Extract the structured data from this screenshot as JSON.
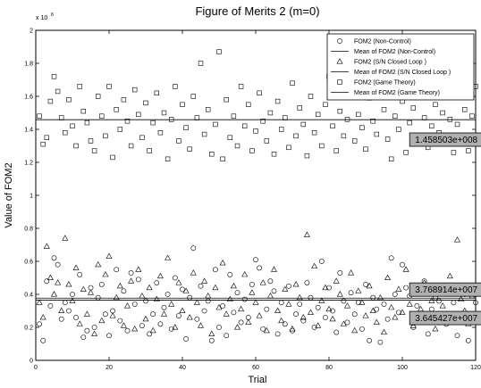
{
  "chart_data": {
    "type": "scatter",
    "title": "Figure of Merits 2 (m=0)",
    "xlabel": "Trial",
    "ylabel": "Value of FOM2",
    "exponent_label": "x 10",
    "exponent_power": "8",
    "xlim": [
      0,
      120
    ],
    "ylim": [
      0,
      2
    ],
    "xticks": [
      "0",
      "20",
      "40",
      "60",
      "80",
      "100",
      "120"
    ],
    "yticks": [
      "0",
      "0.2",
      "0.4",
      "0.6",
      "0.8",
      "1",
      "1.2",
      "1.4",
      "1.6",
      "1.8",
      "2"
    ],
    "grid": false,
    "legend_position": "top-right",
    "legend": [
      "FOM2 (Non-Control)",
      "Mean of FOM2 (Non-Control)",
      "FOM2 (S/N Closed Loop )",
      "Mean of FOM2 (S/N Closed Loop )",
      "FOM2 (Game Theory)",
      "Mean of FOM2 (Game Theory)"
    ],
    "series": [
      {
        "name": "FOM2 (Non-Control)",
        "marker": "circle",
        "mean": 0.3768914,
        "x": [
          1,
          2,
          3,
          4,
          5,
          6,
          7,
          8,
          9,
          10,
          11,
          12,
          13,
          14,
          15,
          16,
          17,
          18,
          19,
          20,
          21,
          22,
          23,
          24,
          25,
          26,
          27,
          28,
          29,
          30,
          31,
          32,
          33,
          34,
          35,
          36,
          37,
          38,
          39,
          40,
          41,
          42,
          43,
          44,
          45,
          46,
          47,
          48,
          49,
          50,
          51,
          52,
          53,
          54,
          55,
          56,
          57,
          58,
          59,
          60,
          61,
          62,
          63,
          64,
          65,
          66,
          67,
          68,
          69,
          70,
          71,
          72,
          73,
          74,
          75,
          76,
          77,
          78,
          79,
          80,
          81,
          82,
          83,
          84,
          85,
          86,
          87,
          88,
          89,
          90,
          91,
          92,
          93,
          94,
          95,
          96,
          97,
          98,
          99,
          100,
          101,
          102,
          103,
          104,
          105,
          106,
          107,
          108,
          109,
          110,
          111,
          112,
          113,
          114,
          115,
          116,
          117,
          118,
          119,
          120
        ],
        "y": [
          0.22,
          0.12,
          0.48,
          0.33,
          0.62,
          0.58,
          0.25,
          0.35,
          0.3,
          0.4,
          0.26,
          0.52,
          0.14,
          0.18,
          0.44,
          0.2,
          0.38,
          0.46,
          0.28,
          0.15,
          0.3,
          0.55,
          0.24,
          0.42,
          0.18,
          0.53,
          0.34,
          0.49,
          0.21,
          0.36,
          0.16,
          0.28,
          0.47,
          0.22,
          0.32,
          0.4,
          0.19,
          0.5,
          0.27,
          0.43,
          0.13,
          0.38,
          0.68,
          0.25,
          0.45,
          0.3,
          0.36,
          0.12,
          0.55,
          0.2,
          0.33,
          0.15,
          0.52,
          0.29,
          0.41,
          0.23,
          0.37,
          0.26,
          0.46,
          0.61,
          0.56,
          0.19,
          0.31,
          0.48,
          0.42,
          0.16,
          0.35,
          0.22,
          0.45,
          0.18,
          0.28,
          0.34,
          0.24,
          0.47,
          0.38,
          0.2,
          0.32,
          0.6,
          0.26,
          0.44,
          0.3,
          0.17,
          0.53,
          0.36,
          0.23,
          0.41,
          0.28,
          0.35,
          0.19,
          0.46,
          0.12,
          0.38,
          0.31,
          0.11,
          0.34,
          0.25,
          0.62,
          0.4,
          0.29,
          0.58,
          0.44,
          0.39,
          0.2,
          0.33,
          0.27,
          0.48,
          0.16,
          0.31,
          0.38,
          0.36,
          0.25,
          0.22,
          0.42,
          0.35,
          0.15,
          0.28,
          0.4,
          0.12,
          0.24,
          0.35
        ]
      },
      {
        "name": "FOM2 (S/N Closed Loop )",
        "marker": "triangle",
        "mean": 0.3645427,
        "x": [
          1,
          2,
          3,
          4,
          5,
          6,
          7,
          8,
          9,
          10,
          11,
          12,
          13,
          14,
          15,
          16,
          17,
          18,
          19,
          20,
          21,
          22,
          23,
          24,
          25,
          26,
          27,
          28,
          29,
          30,
          31,
          32,
          33,
          34,
          35,
          36,
          37,
          38,
          39,
          40,
          41,
          42,
          43,
          44,
          45,
          46,
          47,
          48,
          49,
          50,
          51,
          52,
          53,
          54,
          55,
          56,
          57,
          58,
          59,
          60,
          61,
          62,
          63,
          64,
          65,
          66,
          67,
          68,
          69,
          70,
          71,
          72,
          73,
          74,
          75,
          76,
          77,
          78,
          79,
          80,
          81,
          82,
          83,
          84,
          85,
          86,
          87,
          88,
          89,
          90,
          91,
          92,
          93,
          94,
          95,
          96,
          97,
          98,
          99,
          100,
          101,
          102,
          103,
          104,
          105,
          106,
          107,
          108,
          109,
          110,
          111,
          112,
          113,
          114,
          115,
          116,
          117,
          118,
          119,
          120
        ],
        "y": [
          0.35,
          0.26,
          0.69,
          0.5,
          0.4,
          0.47,
          0.3,
          0.74,
          0.46,
          0.36,
          0.56,
          0.22,
          0.43,
          0.28,
          0.41,
          0.16,
          0.58,
          0.24,
          0.52,
          0.63,
          0.27,
          0.38,
          0.45,
          0.21,
          0.33,
          0.48,
          0.19,
          0.55,
          0.39,
          0.25,
          0.44,
          0.18,
          0.37,
          0.51,
          0.28,
          0.62,
          0.34,
          0.2,
          0.47,
          0.3,
          0.42,
          0.26,
          0.53,
          0.35,
          0.21,
          0.48,
          0.39,
          0.16,
          0.44,
          0.32,
          0.59,
          0.28,
          0.37,
          0.45,
          0.2,
          0.31,
          0.52,
          0.23,
          0.41,
          0.35,
          0.27,
          0.47,
          0.18,
          0.39,
          0.55,
          0.3,
          0.24,
          0.43,
          0.34,
          0.19,
          0.46,
          0.38,
          0.26,
          0.76,
          0.29,
          0.57,
          0.21,
          0.36,
          0.44,
          0.31,
          0.25,
          0.48,
          0.4,
          0.22,
          0.33,
          0.53,
          0.18,
          0.42,
          0.35,
          0.27,
          0.45,
          0.3,
          0.23,
          0.38,
          0.17,
          0.5,
          0.32,
          0.26,
          0.43,
          0.29,
          0.55,
          0.34,
          0.21,
          0.4,
          0.31,
          0.47,
          0.24,
          0.36,
          0.19,
          0.44,
          0.33,
          0.28,
          0.51,
          0.25,
          0.73,
          0.37,
          0.3,
          0.22,
          0.39,
          0.26
        ]
      },
      {
        "name": "FOM2 (Game Theory)",
        "marker": "square",
        "mean": 1.458503,
        "x": [
          1,
          2,
          3,
          4,
          5,
          6,
          7,
          8,
          9,
          10,
          11,
          12,
          13,
          14,
          15,
          16,
          17,
          18,
          19,
          20,
          21,
          22,
          23,
          24,
          25,
          26,
          27,
          28,
          29,
          30,
          31,
          32,
          33,
          34,
          35,
          36,
          37,
          38,
          39,
          40,
          41,
          42,
          43,
          44,
          45,
          46,
          47,
          48,
          49,
          50,
          51,
          52,
          53,
          54,
          55,
          56,
          57,
          58,
          59,
          60,
          61,
          62,
          63,
          64,
          65,
          66,
          67,
          68,
          69,
          70,
          71,
          72,
          73,
          74,
          75,
          76,
          77,
          78,
          79,
          80,
          81,
          82,
          83,
          84,
          85,
          86,
          87,
          88,
          89,
          90,
          91,
          92,
          93,
          94,
          95,
          96,
          97,
          98,
          99,
          100,
          101,
          102,
          103,
          104,
          105,
          106,
          107,
          108,
          109,
          110,
          111,
          112,
          113,
          114,
          115,
          116,
          117,
          118,
          119,
          120
        ],
        "y": [
          1.48,
          1.31,
          1.35,
          1.57,
          1.72,
          1.63,
          1.47,
          1.38,
          1.58,
          1.42,
          1.3,
          1.66,
          1.51,
          1.44,
          1.33,
          1.27,
          1.6,
          1.48,
          1.36,
          1.66,
          1.23,
          1.52,
          1.4,
          1.58,
          1.45,
          1.3,
          1.64,
          1.49,
          1.35,
          1.56,
          1.27,
          1.44,
          1.62,
          1.38,
          1.5,
          1.22,
          1.46,
          1.66,
          1.33,
          1.55,
          1.41,
          1.28,
          1.6,
          1.47,
          1.8,
          1.37,
          1.52,
          1.25,
          1.43,
          1.87,
          1.22,
          1.58,
          1.35,
          1.48,
          1.3,
          1.66,
          1.42,
          1.55,
          1.27,
          1.39,
          1.62,
          1.45,
          1.33,
          1.5,
          1.25,
          1.57,
          1.4,
          1.47,
          1.29,
          1.68,
          1.36,
          1.53,
          1.43,
          1.24,
          1.6,
          1.38,
          1.49,
          1.3,
          1.55,
          1.72,
          1.42,
          1.27,
          1.51,
          1.36,
          1.46,
          1.78,
          1.33,
          1.49,
          1.41,
          1.28,
          1.59,
          1.45,
          1.37,
          1.65,
          1.52,
          1.34,
          1.22,
          1.48,
          1.4,
          1.57,
          1.26,
          1.44,
          1.53,
          1.35,
          1.62,
          1.47,
          1.29,
          1.42,
          1.55,
          1.38,
          1.5,
          1.32,
          1.46,
          1.26,
          1.43,
          1.36,
          1.52,
          1.27,
          1.48,
          1.66
        ]
      }
    ],
    "annotations": [
      {
        "text": "1.458503e+008",
        "x": 102,
        "y": 1.3458503
      },
      {
        "text": "3.768914e+007",
        "x": 102,
        "y": 0.4368914
      },
      {
        "text": "3.645427e+007",
        "x": 102,
        "y": 0.2645427
      }
    ]
  }
}
